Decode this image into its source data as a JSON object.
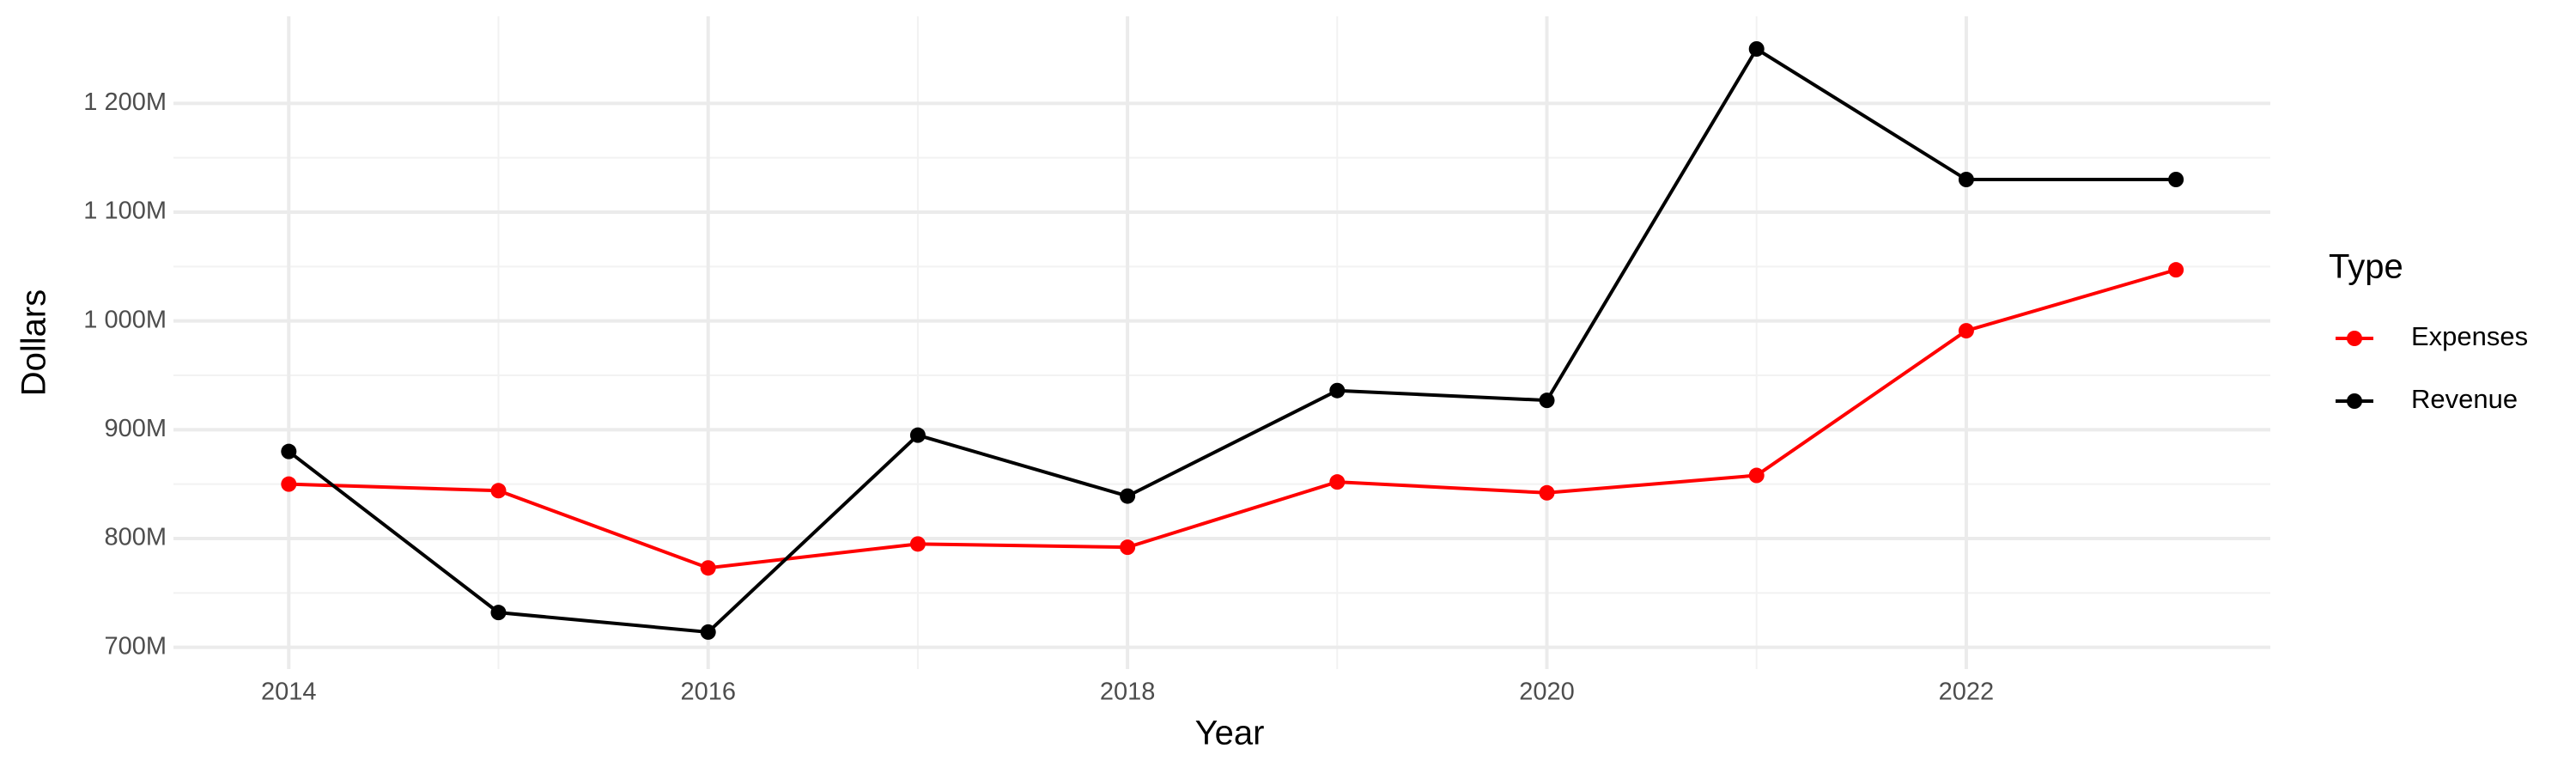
{
  "chart_data": {
    "type": "line",
    "x_label": "Year",
    "y_label": "Dollars",
    "legend_title": "Type",
    "x": [
      2014,
      2015,
      2016,
      2017,
      2018,
      2019,
      2020,
      2021,
      2022,
      2023
    ],
    "series": [
      {
        "name": "Expenses",
        "color": "#ff0000",
        "values": [
          850000000,
          844000000,
          773000000,
          795000000,
          792000000,
          852000000,
          842000000,
          858000000,
          991000000,
          1047000000
        ]
      },
      {
        "name": "Revenue",
        "color": "#000000",
        "values": [
          880000000,
          732000000,
          714000000,
          895000000,
          839000000,
          936000000,
          927000000,
          1250000000,
          1130000000,
          1130000000
        ]
      }
    ],
    "xlim": [
      2013.45,
      2023.45
    ],
    "xticks": [
      2014,
      2016,
      2018,
      2020,
      2022
    ],
    "ylim": [
      680000000,
      1280000000
    ],
    "yticks": [
      {
        "value": 700000000,
        "label": "700M"
      },
      {
        "value": 800000000,
        "label": "800M"
      },
      {
        "value": 900000000,
        "label": "900M"
      },
      {
        "value": 1000000000,
        "label": "1 000M"
      },
      {
        "value": 1100000000,
        "label": "1 100M"
      },
      {
        "value": 1200000000,
        "label": "1 200M"
      }
    ],
    "grid": true,
    "legend_position": "right"
  }
}
